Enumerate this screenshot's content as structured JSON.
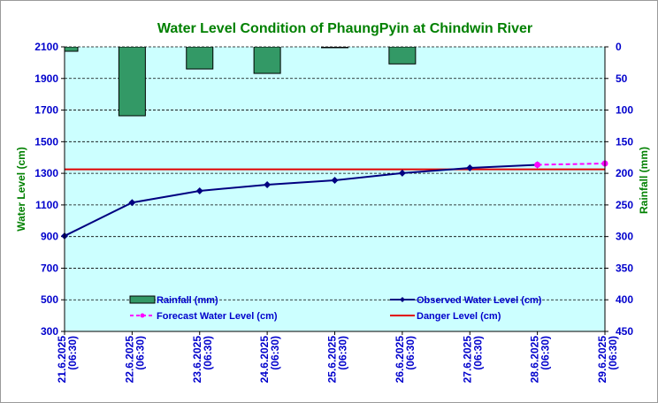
{
  "chart_data": {
    "type": "bar+line",
    "title": "Water Level Condition of PhaungPyin at Chindwin River",
    "ylabel": "Water Level (cm)",
    "y2label": "Rainfall (mm)",
    "ylim": [
      300,
      2100
    ],
    "yticks": [
      300,
      500,
      700,
      900,
      1100,
      1300,
      1500,
      1700,
      1900,
      2100
    ],
    "y2lim": [
      0,
      450
    ],
    "y2_inverted": true,
    "y2ticks": [
      0,
      50,
      100,
      150,
      200,
      250,
      300,
      350,
      400,
      450
    ],
    "grid": true,
    "legend": "bottom-inside",
    "categories": [
      [
        "21.6.2025",
        "(06:30)"
      ],
      [
        "22.6.2025",
        "(06:30)"
      ],
      [
        "23.6.2025",
        "(06:30)"
      ],
      [
        "24.6.2025",
        "(06:30)"
      ],
      [
        "25.6.2025",
        "(06:30)"
      ],
      [
        "26.6.2025",
        "(06:30)"
      ],
      [
        "27.6.2025",
        "(06:30)"
      ],
      [
        "28.6.2025",
        "(06:30)"
      ],
      [
        "29.6.2025",
        "(06:30)"
      ]
    ],
    "series": [
      {
        "name": "Rainfall (mm)",
        "type": "bar",
        "axis": "right",
        "color": "#339966",
        "values": [
          7,
          109,
          35,
          42,
          1,
          27,
          0,
          0,
          0
        ]
      },
      {
        "name": "Observed Water Level (cm)",
        "type": "line",
        "axis": "left",
        "color": "#000080",
        "values": [
          904,
          1115,
          1189,
          1228,
          1256,
          1301,
          1334,
          1354,
          null
        ]
      },
      {
        "name": "Forecast Water Level (cm)",
        "type": "line-dashed",
        "axis": "left",
        "color": "#ff00ff",
        "values": [
          null,
          null,
          null,
          null,
          null,
          null,
          null,
          1354,
          1362
        ]
      },
      {
        "name": "Danger Level (cm)",
        "type": "hline",
        "axis": "left",
        "color": "#e00000",
        "value": 1325
      }
    ]
  },
  "colors": {
    "plot_bg": "#ccffff",
    "title": "#008000",
    "axis_text": "#0000cc"
  }
}
